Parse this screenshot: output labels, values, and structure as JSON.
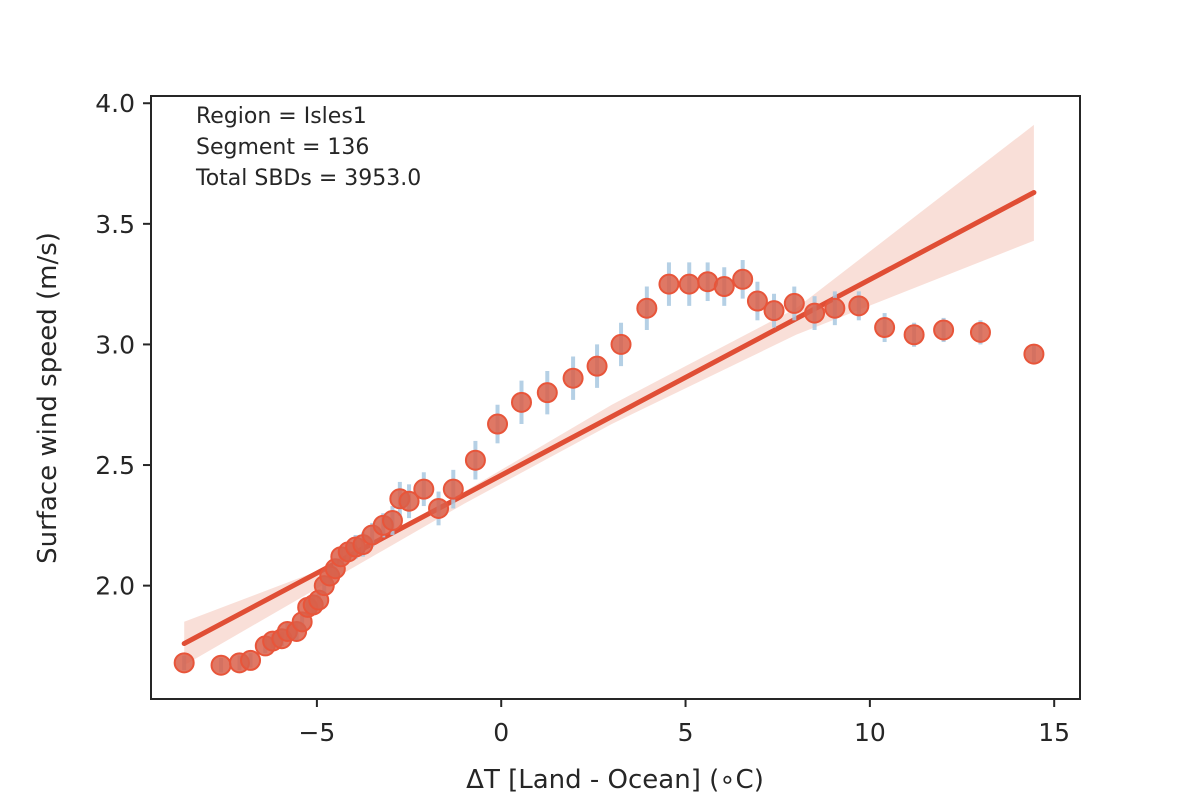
{
  "chart_data": {
    "type": "scatter",
    "xlabel": "ΔT [Land - Ocean] (∘C)",
    "ylabel": "Surface wind speed (m/s)",
    "xlim": [
      -9.5,
      15.7
    ],
    "ylim": [
      1.53,
      4.03
    ],
    "xticks": [
      -5,
      0,
      5,
      10,
      15
    ],
    "xtick_labels": [
      "−5",
      "0",
      "5",
      "10",
      "15"
    ],
    "yticks": [
      2.0,
      2.5,
      3.0,
      3.5,
      4.0
    ],
    "ytick_labels": [
      "2.0",
      "2.5",
      "3.0",
      "3.5",
      "4.0"
    ],
    "grid": false,
    "annotations": [
      "Region = Isles1",
      "Segment = 136",
      "Total SBDs = 3953.0"
    ],
    "colors": {
      "marker_fill": "#d9604a",
      "marker_edge": "#e8553a",
      "error_bar": "#a8c8e0",
      "fit_line": "#e04e35",
      "confidence_band": "#f4c4b8",
      "axes": "#262626"
    },
    "points": [
      {
        "x": -8.6,
        "y": 1.68,
        "err": 0.03
      },
      {
        "x": -7.6,
        "y": 1.67,
        "err": 0.03
      },
      {
        "x": -7.1,
        "y": 1.68,
        "err": 0.03
      },
      {
        "x": -6.8,
        "y": 1.69,
        "err": 0.03
      },
      {
        "x": -6.4,
        "y": 1.75,
        "err": 0.03
      },
      {
        "x": -6.2,
        "y": 1.77,
        "err": 0.03
      },
      {
        "x": -5.95,
        "y": 1.78,
        "err": 0.03
      },
      {
        "x": -5.8,
        "y": 1.81,
        "err": 0.04
      },
      {
        "x": -5.55,
        "y": 1.81,
        "err": 0.04
      },
      {
        "x": -5.4,
        "y": 1.85,
        "err": 0.04
      },
      {
        "x": -5.25,
        "y": 1.91,
        "err": 0.04
      },
      {
        "x": -5.1,
        "y": 1.92,
        "err": 0.04
      },
      {
        "x": -4.95,
        "y": 1.94,
        "err": 0.04
      },
      {
        "x": -4.8,
        "y": 2.0,
        "err": 0.04
      },
      {
        "x": -4.65,
        "y": 2.04,
        "err": 0.04
      },
      {
        "x": -4.5,
        "y": 2.07,
        "err": 0.04
      },
      {
        "x": -4.35,
        "y": 2.12,
        "err": 0.04
      },
      {
        "x": -4.15,
        "y": 2.14,
        "err": 0.04
      },
      {
        "x": -3.95,
        "y": 2.16,
        "err": 0.05
      },
      {
        "x": -3.75,
        "y": 2.17,
        "err": 0.05
      },
      {
        "x": -3.5,
        "y": 2.21,
        "err": 0.05
      },
      {
        "x": -3.2,
        "y": 2.25,
        "err": 0.05
      },
      {
        "x": -2.95,
        "y": 2.27,
        "err": 0.06
      },
      {
        "x": -2.75,
        "y": 2.36,
        "err": 0.07
      },
      {
        "x": -2.5,
        "y": 2.35,
        "err": 0.07
      },
      {
        "x": -2.1,
        "y": 2.4,
        "err": 0.07
      },
      {
        "x": -1.7,
        "y": 2.32,
        "err": 0.07
      },
      {
        "x": -1.3,
        "y": 2.4,
        "err": 0.08
      },
      {
        "x": -0.7,
        "y": 2.52,
        "err": 0.08
      },
      {
        "x": -0.1,
        "y": 2.67,
        "err": 0.08
      },
      {
        "x": 0.55,
        "y": 2.76,
        "err": 0.09
      },
      {
        "x": 1.25,
        "y": 2.8,
        "err": 0.09
      },
      {
        "x": 1.95,
        "y": 2.86,
        "err": 0.09
      },
      {
        "x": 2.6,
        "y": 2.91,
        "err": 0.09
      },
      {
        "x": 3.25,
        "y": 3.0,
        "err": 0.09
      },
      {
        "x": 3.95,
        "y": 3.15,
        "err": 0.09
      },
      {
        "x": 4.55,
        "y": 3.25,
        "err": 0.09
      },
      {
        "x": 5.1,
        "y": 3.25,
        "err": 0.09
      },
      {
        "x": 5.6,
        "y": 3.26,
        "err": 0.08
      },
      {
        "x": 6.05,
        "y": 3.24,
        "err": 0.08
      },
      {
        "x": 6.55,
        "y": 3.27,
        "err": 0.08
      },
      {
        "x": 6.95,
        "y": 3.18,
        "err": 0.08
      },
      {
        "x": 7.4,
        "y": 3.14,
        "err": 0.07
      },
      {
        "x": 7.95,
        "y": 3.17,
        "err": 0.07
      },
      {
        "x": 8.5,
        "y": 3.13,
        "err": 0.07
      },
      {
        "x": 9.05,
        "y": 3.15,
        "err": 0.07
      },
      {
        "x": 9.7,
        "y": 3.16,
        "err": 0.06
      },
      {
        "x": 10.4,
        "y": 3.07,
        "err": 0.06
      },
      {
        "x": 11.2,
        "y": 3.04,
        "err": 0.05
      },
      {
        "x": 12.0,
        "y": 3.06,
        "err": 0.05
      },
      {
        "x": 13.0,
        "y": 3.05,
        "err": 0.05
      },
      {
        "x": 14.45,
        "y": 2.96,
        "err": 0.04
      }
    ],
    "fit": {
      "x": [
        -8.6,
        14.45
      ],
      "y": [
        1.76,
        3.63
      ]
    },
    "confidence_band": {
      "x": [
        -8.6,
        -4.3,
        -1.0,
        3.0,
        8.0,
        14.45
      ],
      "lower": [
        1.67,
        2.05,
        2.34,
        2.67,
        3.04,
        3.43
      ],
      "upper": [
        1.85,
        2.1,
        2.39,
        2.75,
        3.15,
        3.91
      ]
    }
  }
}
